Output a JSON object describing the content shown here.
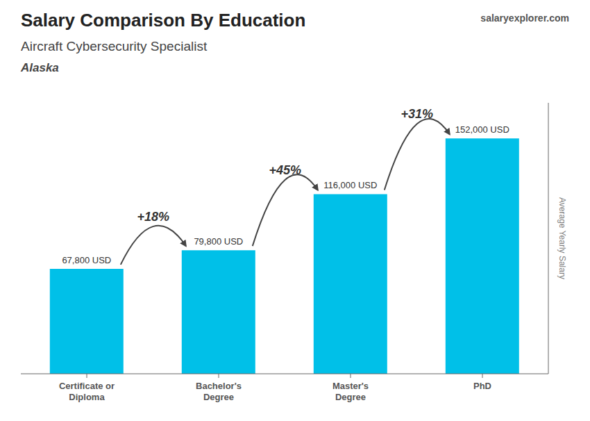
{
  "chart_data": {
    "type": "bar",
    "title": "Salary Comparison By Education",
    "subtitle": "Aircraft Cybersecurity Specialist",
    "ylabel": "Average Yearly Salary",
    "categories": [
      "Certificate or\nDiploma",
      "Bachelor's\nDegree",
      "Master's\nDegree",
      "PhD"
    ],
    "values": [
      67800,
      79800,
      116000,
      152000
    ],
    "value_labels": [
      "67,800 USD",
      "79,800 USD",
      "116,000 USD",
      "152,000 USD"
    ],
    "data_labels": true,
    "color": "#00C0E8",
    "ylim": [
      0,
      175000
    ],
    "tick_labels": "x",
    "grid": false,
    "annotations": [
      {
        "text": "Alaska"
      },
      {
        "text": "salaryexplorer.com"
      },
      {
        "text": "+18%",
        "between": [
          "Certificate or\nDiploma",
          "Bachelor's\nDegree"
        ]
      },
      {
        "text": "+45%",
        "between": [
          "Bachelor's\nDegree",
          "Master's\nDegree"
        ]
      },
      {
        "text": "+31%",
        "between": [
          "Master's\nDegree",
          "PhD"
        ]
      }
    ]
  }
}
